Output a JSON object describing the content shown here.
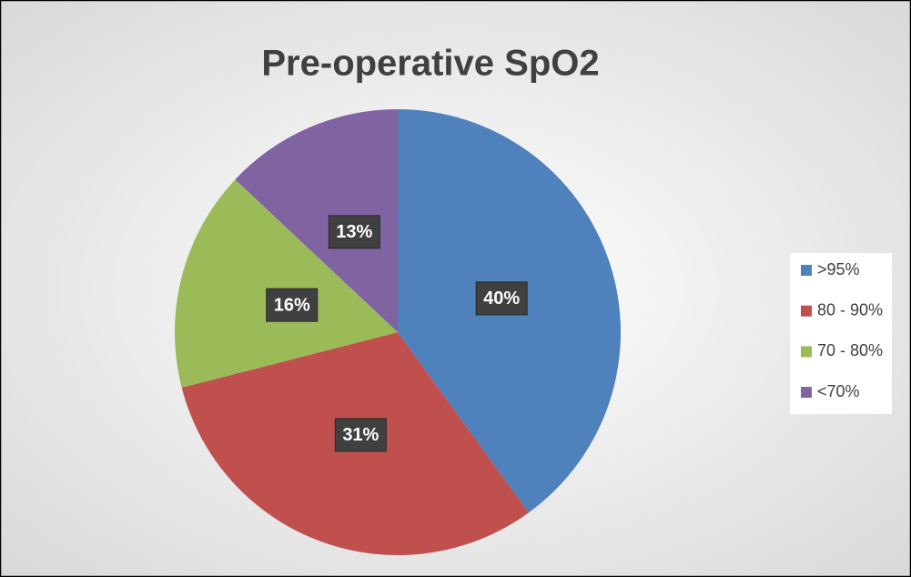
{
  "chart_data": {
    "type": "pie",
    "title": "Pre-operative SpO2",
    "categories": [
      ">95%",
      "80 - 90%",
      "70 - 80%",
      "<70%"
    ],
    "values": [
      40,
      31,
      16,
      13
    ],
    "value_labels": [
      "40%",
      "31%",
      "16%",
      "13%"
    ],
    "colors": [
      "#4f81bd",
      "#c0504d",
      "#9bbb59",
      "#8064a2"
    ],
    "legend": "right"
  }
}
